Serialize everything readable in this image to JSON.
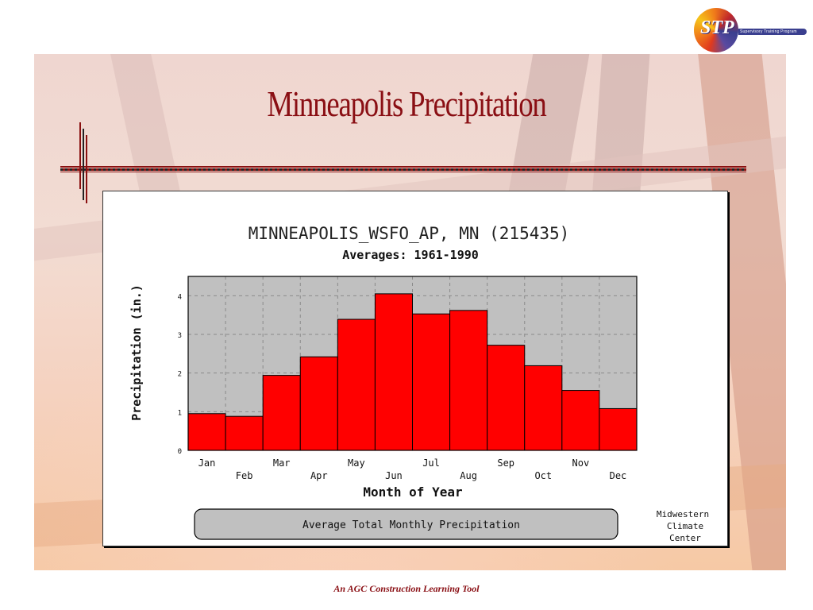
{
  "logo": {
    "letters": "STP",
    "text": "Supervisory Training Program"
  },
  "slide": {
    "title": "Minneapolis Precipitation",
    "footer": "An AGC Construction Learning Tool"
  },
  "chart_data": {
    "type": "bar",
    "title": "MINNEAPOLIS_WSFO_AP, MN (215435)",
    "subtitle": "Averages: 1961-1990",
    "xlabel": "Month of Year",
    "ylabel": "Precipitation (in.)",
    "ylim": [
      0,
      4.5
    ],
    "yticks": [
      0,
      1,
      2,
      3,
      4
    ],
    "grid": true,
    "categories": [
      "Jan",
      "Feb",
      "Mar",
      "Apr",
      "May",
      "Jun",
      "Jul",
      "Aug",
      "Sep",
      "Oct",
      "Nov",
      "Dec"
    ],
    "values": [
      0.95,
      0.88,
      1.94,
      2.42,
      3.39,
      4.05,
      3.53,
      3.62,
      2.72,
      2.19,
      1.55,
      1.08
    ],
    "legend": "Average Total Monthly Precipitation",
    "source": [
      "Midwestern",
      "Climate",
      "Center"
    ],
    "colors": {
      "bar": "#ff0000",
      "plot_bg": "#c0c0c0",
      "grid": "#8a8a8a"
    }
  }
}
